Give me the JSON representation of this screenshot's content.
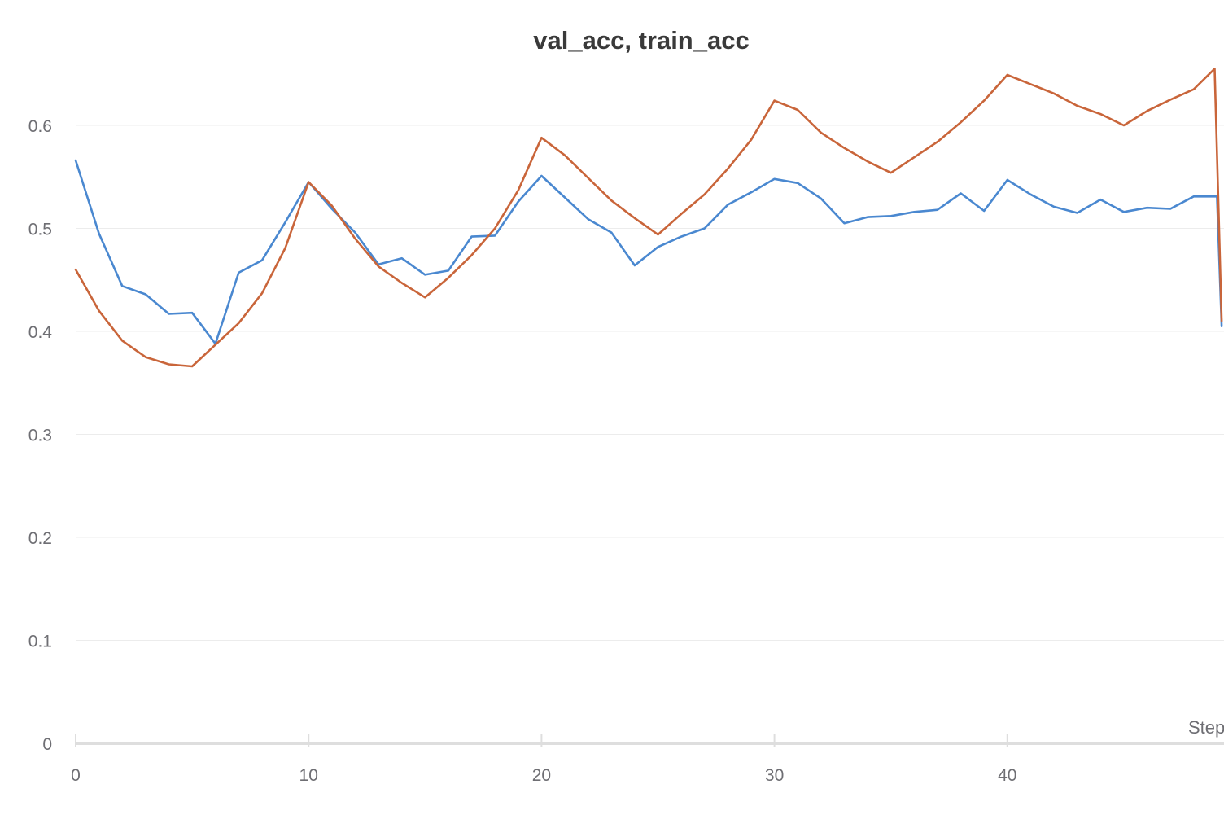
{
  "chart_data": {
    "type": "line",
    "title": "val_acc, train_acc",
    "xlabel": "Step",
    "ylabel": "",
    "xlim": [
      0,
      49.2
    ],
    "ylim": [
      0,
      0.68
    ],
    "x_ticks": [
      0,
      10,
      20,
      30,
      40
    ],
    "y_ticks": [
      0,
      0.1,
      0.2,
      0.3,
      0.4,
      0.5,
      0.6
    ],
    "x_tick_labels": [
      "0",
      "10",
      "20",
      "30",
      "40"
    ],
    "y_tick_labels": [
      "0",
      "0.1",
      "0.2",
      "0.3",
      "0.4",
      "0.5",
      "0.6"
    ],
    "grid": true,
    "legend": "none",
    "series": [
      {
        "color": "#4a88d0",
        "x": [
          0,
          1,
          2,
          3,
          4,
          5,
          6,
          7,
          8,
          9,
          10,
          11,
          12,
          13,
          14,
          15,
          16,
          17,
          18,
          19,
          20,
          21,
          22,
          23,
          24,
          25,
          26,
          27,
          28,
          29,
          30,
          31,
          32,
          33,
          34,
          35,
          36,
          37,
          38,
          39,
          40,
          41,
          42,
          43,
          44,
          45,
          46,
          47,
          48,
          49,
          49.2
        ],
        "values": [
          0.566,
          0.495,
          0.444,
          0.436,
          0.417,
          0.418,
          0.388,
          0.457,
          0.469,
          0.506,
          0.545,
          0.519,
          0.496,
          0.465,
          0.471,
          0.455,
          0.459,
          0.492,
          0.493,
          0.526,
          0.551,
          0.53,
          0.509,
          0.496,
          0.464,
          0.482,
          0.492,
          0.5,
          0.523,
          0.535,
          0.548,
          0.544,
          0.529,
          0.505,
          0.511,
          0.512,
          0.516,
          0.518,
          0.534,
          0.517,
          0.547,
          0.533,
          0.521,
          0.515,
          0.528,
          0.516,
          0.52,
          0.519,
          0.531,
          0.531,
          0.405
        ]
      },
      {
        "color": "#c9653a",
        "x": [
          0,
          1,
          2,
          3,
          4,
          5,
          6,
          7,
          8,
          9,
          10,
          11,
          12,
          13,
          14,
          15,
          16,
          17,
          18,
          19,
          20,
          21,
          22,
          23,
          24,
          25,
          26,
          27,
          28,
          29,
          30,
          31,
          32,
          33,
          34,
          35,
          36,
          37,
          38,
          39,
          40,
          41,
          42,
          43,
          44,
          45,
          46,
          47,
          48,
          48.9,
          49.2
        ],
        "values": [
          0.46,
          0.42,
          0.391,
          0.375,
          0.368,
          0.366,
          0.387,
          0.408,
          0.437,
          0.481,
          0.545,
          0.522,
          0.49,
          0.463,
          0.447,
          0.433,
          0.452,
          0.474,
          0.5,
          0.537,
          0.588,
          0.571,
          0.549,
          0.527,
          0.51,
          0.494,
          0.514,
          0.533,
          0.558,
          0.586,
          0.624,
          0.615,
          0.593,
          0.578,
          0.565,
          0.554,
          0.569,
          0.584,
          0.603,
          0.624,
          0.649,
          0.64,
          0.631,
          0.619,
          0.611,
          0.6,
          0.614,
          0.625,
          0.635,
          0.655,
          0.41
        ]
      }
    ]
  }
}
